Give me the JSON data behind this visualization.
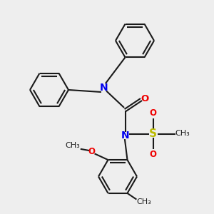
{
  "bg_color": "#eeeeee",
  "bond_color": "#1a1a1a",
  "N_color": "#0000ee",
  "O_color": "#ee0000",
  "S_color": "#bbbb00",
  "line_width": 1.5,
  "font_size": 8.5,
  "figsize": [
    3.0,
    3.0
  ],
  "dpi": 100,
  "xlim": [
    0,
    10
  ],
  "ylim": [
    0,
    10
  ]
}
